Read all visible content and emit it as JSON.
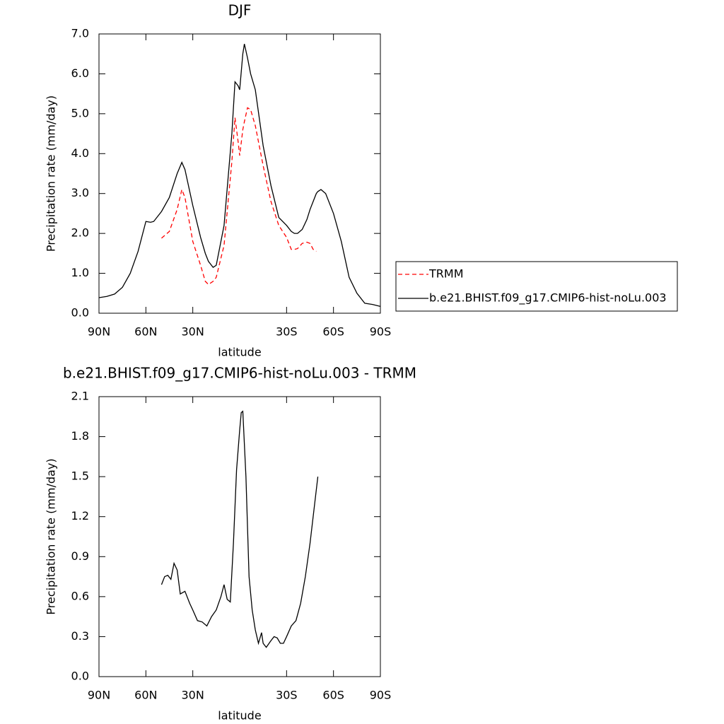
{
  "chart_data": [
    {
      "type": "line",
      "title": "DJF",
      "xlabel": "latitude",
      "ylabel": "Precipitation rate (mm/day)",
      "x": [
        90,
        85,
        80,
        75,
        70,
        65,
        60,
        57,
        55,
        50,
        45,
        40,
        37,
        35,
        30,
        25,
        22,
        20,
        17,
        15,
        10,
        5,
        3,
        1,
        0,
        -2,
        -3,
        -5,
        -7,
        -10,
        -15,
        -20,
        -25,
        -30,
        -33,
        -35,
        -37,
        -40,
        -43,
        -45,
        -47,
        -49,
        -50,
        -52,
        -55,
        -60,
        -65,
        -70,
        -75,
        -80,
        -85,
        -90
      ],
      "series": [
        {
          "name": "TRMM",
          "color": "#ff0000",
          "dashed": true,
          "values": [
            null,
            null,
            null,
            null,
            null,
            null,
            null,
            null,
            null,
            1.88,
            2.05,
            2.6,
            3.1,
            2.9,
            1.8,
            1.2,
            0.8,
            0.72,
            0.8,
            0.9,
            1.7,
            3.8,
            4.9,
            4.3,
            3.95,
            4.6,
            4.8,
            5.15,
            5.1,
            4.7,
            3.7,
            2.8,
            2.2,
            1.9,
            1.6,
            1.6,
            1.62,
            1.75,
            1.78,
            1.75,
            1.6,
            1.55,
            null,
            null,
            null,
            null,
            null,
            null,
            null,
            null,
            null,
            null
          ]
        },
        {
          "name": "b.e21.BHIST.f09_g17.CMIP6-hist-noLu.003",
          "color": "#000000",
          "dashed": false,
          "values": [
            0.39,
            0.42,
            0.48,
            0.65,
            1.0,
            1.55,
            2.3,
            2.28,
            2.3,
            2.55,
            2.9,
            3.5,
            3.78,
            3.6,
            2.7,
            1.9,
            1.5,
            1.3,
            1.15,
            1.2,
            2.2,
            4.5,
            5.8,
            5.7,
            5.6,
            6.5,
            6.75,
            6.4,
            6.0,
            5.6,
            4.2,
            3.2,
            2.4,
            2.2,
            2.05,
            2.0,
            2.0,
            2.1,
            2.35,
            2.6,
            2.8,
            3.0,
            3.05,
            3.1,
            3.0,
            2.5,
            1.8,
            0.9,
            0.5,
            0.25,
            0.22,
            0.17
          ]
        }
      ],
      "xlim": [
        90,
        -90
      ],
      "xticks": [
        {
          "value": 90,
          "label": "90N"
        },
        {
          "value": 60,
          "label": "60N"
        },
        {
          "value": 30,
          "label": "30N"
        },
        {
          "value": -30,
          "label": "30S"
        },
        {
          "value": -60,
          "label": "60S"
        },
        {
          "value": -90,
          "label": "90S"
        }
      ],
      "ylim": [
        0,
        7
      ],
      "yticks": [
        {
          "value": 0,
          "label": "0.0"
        },
        {
          "value": 1,
          "label": "1.0"
        },
        {
          "value": 2,
          "label": "2.0"
        },
        {
          "value": 3,
          "label": "3.0"
        },
        {
          "value": 4,
          "label": "4.0"
        },
        {
          "value": 5,
          "label": "5.0"
        },
        {
          "value": 6,
          "label": "6.0"
        },
        {
          "value": 7,
          "label": "7.0"
        }
      ],
      "legend": "right"
    },
    {
      "type": "line",
      "title": "b.e21.BHIST.f09_g17.CMIP6-hist-noLu.003 - TRMM",
      "xlabel": "latitude",
      "ylabel": "Precipitation rate (mm/day)",
      "x": [
        50,
        48,
        46,
        44,
        42,
        40,
        38,
        35,
        32,
        30,
        27,
        24,
        21,
        18,
        15,
        12,
        10,
        8,
        6,
        4,
        2,
        0,
        -1,
        -2,
        -4,
        -6,
        -8,
        -10,
        -12,
        -14,
        -15,
        -17,
        -20,
        -22,
        -24,
        -26,
        -28,
        -30,
        -33,
        -36,
        -39,
        -42,
        -45,
        -48,
        -50
      ],
      "series": [
        {
          "color": "#000000",
          "dashed": false,
          "values": [
            0.69,
            0.75,
            0.76,
            0.73,
            0.85,
            0.8,
            0.62,
            0.64,
            0.55,
            0.5,
            0.42,
            0.41,
            0.38,
            0.45,
            0.5,
            0.6,
            0.69,
            0.58,
            0.56,
            1.0,
            1.55,
            1.85,
            1.98,
            1.99,
            1.5,
            0.75,
            0.5,
            0.35,
            0.25,
            0.33,
            0.25,
            0.22,
            0.27,
            0.3,
            0.29,
            0.25,
            0.25,
            0.3,
            0.38,
            0.42,
            0.55,
            0.75,
            1.0,
            1.3,
            1.5
          ]
        }
      ],
      "xlim": [
        90,
        -90
      ],
      "xticks": [
        {
          "value": 90,
          "label": "90N"
        },
        {
          "value": 60,
          "label": "60N"
        },
        {
          "value": 30,
          "label": "30N"
        },
        {
          "value": -30,
          "label": "30S"
        },
        {
          "value": -60,
          "label": "60S"
        },
        {
          "value": -90,
          "label": "90S"
        }
      ],
      "ylim": [
        0,
        2.1
      ],
      "yticks": [
        {
          "value": 0,
          "label": "0.0"
        },
        0.3,
        0.6,
        0.9,
        1.2,
        1.5,
        1.8,
        2.1
      ]
    }
  ]
}
